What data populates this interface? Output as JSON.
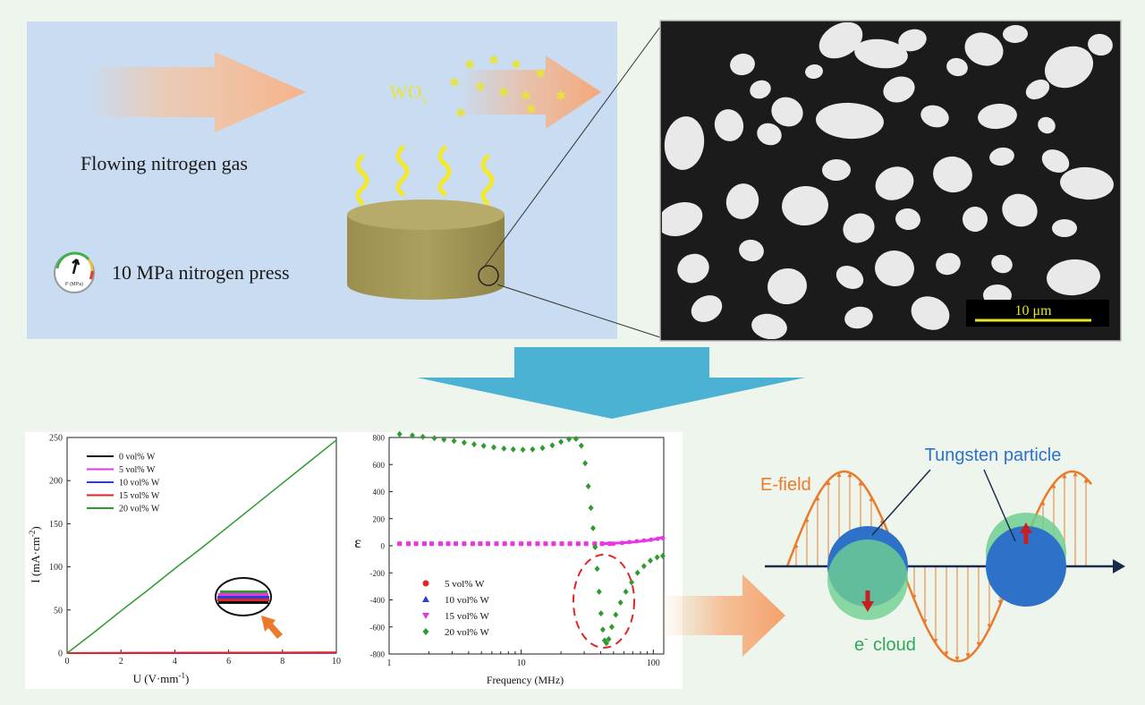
{
  "top_left": {
    "flow_label": "Flowing nitrogen gas",
    "wox_label": "WO",
    "wox_sub": "x",
    "press_label": "10 MPa nitrogen press",
    "gauge_label": "P (MPa)"
  },
  "micrograph": {
    "scale_label": "10 μm"
  },
  "colors": {
    "top_panel_bg": "#c9dcf1",
    "pellet": "#a59a58",
    "down_arrow": "#4bb2d4",
    "e_field": "#ec7a2c",
    "tungsten": "#2d72c8",
    "e_cloud": "#6fcf91",
    "line_green": "#2f9a2f"
  },
  "chart_iu": {
    "chart_data": {
      "type": "line",
      "xlabel": "U (V·mm",
      "xlabel_sup": "-1",
      "ylabel": "I (mA·cm",
      "ylabel_sup": "-2",
      "xlim": [
        0,
        10
      ],
      "ylim": [
        0,
        250
      ],
      "xticks": [
        "0",
        "2",
        "4",
        "6",
        "8",
        "10"
      ],
      "yticks": [
        "0",
        "50",
        "100",
        "150",
        "200",
        "250"
      ],
      "legend": "top-left",
      "series": [
        {
          "name": "0 vol% W",
          "color": "#111111",
          "x": [
            0,
            10
          ],
          "y": [
            0,
            0.2
          ]
        },
        {
          "name": "5 vol% W",
          "color": "#e636e6",
          "x": [
            0,
            10
          ],
          "y": [
            0,
            0.4
          ]
        },
        {
          "name": "10 vol% W",
          "color": "#2a3fd6",
          "x": [
            0,
            10
          ],
          "y": [
            0,
            0.6
          ]
        },
        {
          "name": "15 vol% W",
          "color": "#e02626",
          "x": [
            0,
            10
          ],
          "y": [
            0,
            0.8
          ]
        },
        {
          "name": "20 vol% W",
          "color": "#2f9a2f",
          "x": [
            0,
            1,
            2,
            3,
            4,
            5,
            6,
            7,
            8,
            9,
            10
          ],
          "y": [
            0,
            24,
            49,
            73,
            98,
            122,
            147,
            172,
            197,
            222,
            247
          ]
        }
      ]
    }
  },
  "chart_eps": {
    "chart_data": {
      "type": "scatter",
      "xlabel": "Frequency (MHz)",
      "ylabel": "ε",
      "xscale": "log",
      "xlim": [
        1,
        120
      ],
      "ylim": [
        -800,
        800
      ],
      "xticks": [
        "1",
        "10",
        "100"
      ],
      "yticks": [
        "800",
        "600",
        "400",
        "200",
        "0",
        "-200",
        "-400",
        "-600",
        "-800"
      ],
      "legend": "bottom-left",
      "series": [
        {
          "name": "5 vol% W",
          "color": "#e02626",
          "marker": "circle"
        },
        {
          "name": "10 vol% W",
          "color": "#2a3fd6",
          "marker": "triangle-up"
        },
        {
          "name": "15 vol% W",
          "color": "#e636e6",
          "marker": "triangle-down"
        },
        {
          "name": "20 vol% W",
          "color": "#2f9a2f",
          "marker": "diamond"
        }
      ],
      "green_points": [
        [
          1.2,
          825
        ],
        [
          1.5,
          815
        ],
        [
          1.8,
          805
        ],
        [
          2.2,
          795
        ],
        [
          2.6,
          785
        ],
        [
          3.1,
          774
        ],
        [
          3.7,
          762
        ],
        [
          4.4,
          750
        ],
        [
          5.2,
          738
        ],
        [
          6.2,
          727
        ],
        [
          7.4,
          718
        ],
        [
          8.7,
          712
        ],
        [
          10.3,
          710
        ],
        [
          12.2,
          712
        ],
        [
          14.5,
          722
        ],
        [
          17.2,
          742
        ],
        [
          20.0,
          768
        ],
        [
          23.0,
          788
        ],
        [
          26.0,
          790
        ],
        [
          28.5,
          740
        ],
        [
          30.5,
          610
        ],
        [
          32.2,
          440
        ],
        [
          33.7,
          280
        ],
        [
          35.0,
          130
        ],
        [
          36.3,
          -10
        ],
        [
          37.6,
          -170
        ],
        [
          38.9,
          -340
        ],
        [
          40.2,
          -500
        ],
        [
          41.5,
          -620
        ],
        [
          42.8,
          -700
        ],
        [
          44.2,
          -720
        ],
        [
          46.0,
          -690
        ],
        [
          48.5,
          -600
        ],
        [
          52.0,
          -510
        ],
        [
          56.5,
          -420
        ],
        [
          62.0,
          -340
        ],
        [
          68.5,
          -270
        ],
        [
          76.0,
          -200
        ],
        [
          85.0,
          -150
        ],
        [
          95.0,
          -110
        ],
        [
          107.0,
          -85
        ],
        [
          118.0,
          -75
        ]
      ],
      "flat_points": [
        1.2,
        1.4,
        1.6,
        1.85,
        2.1,
        2.45,
        2.8,
        3.2,
        3.7,
        4.3,
        4.9,
        5.6,
        6.5,
        7.5,
        8.6,
        10,
        11.5,
        13.3,
        15.3,
        17.6,
        20.3,
        23.4,
        27,
        31,
        36,
        41,
        47
      ]
    }
  },
  "diagram": {
    "e_field_label": "E-field",
    "tungsten_label": "Tungsten particle",
    "cloud_label": "e",
    "cloud_sup": "-",
    "cloud_label2": " cloud"
  }
}
